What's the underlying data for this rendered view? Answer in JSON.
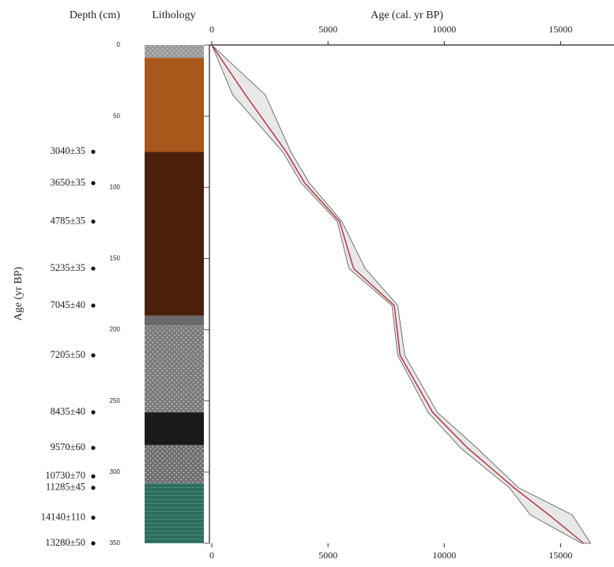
{
  "chart_data": {
    "type": "age-depth",
    "depth_label": "Depth (cm)",
    "lithology_label": "Lithology",
    "x_label": "Age (cal. yr BP)",
    "date_axis_label": "Age (yr BP)",
    "xlim": [
      0,
      17300
    ],
    "xticks": [
      0,
      5000,
      10000,
      15000
    ],
    "ylim": [
      0,
      350
    ],
    "yticks": [
      0,
      50,
      100,
      150,
      200,
      250,
      300,
      350
    ],
    "dates": {
      "depths": [
        75,
        97,
        124,
        157,
        183,
        218,
        258,
        283,
        303,
        311,
        332,
        350
      ],
      "labels": [
        "3040±35",
        "3650±35",
        "4785±35",
        "5235±35",
        "7045±40",
        "7205±50",
        "8435±40",
        "9570±60",
        "10730±70",
        "11285±45",
        "14140±110",
        "13280±50"
      ]
    },
    "lithology": [
      {
        "top": 0,
        "bottom": 9,
        "color": "#9a9a9a",
        "pattern": "dots"
      },
      {
        "top": 9,
        "bottom": 75,
        "color": "#a8581a",
        "pattern": "none"
      },
      {
        "top": 75,
        "bottom": 190,
        "color": "#4a2008",
        "pattern": "none"
      },
      {
        "top": 190,
        "bottom": 197,
        "color": "#6a6a6a",
        "pattern": "none"
      },
      {
        "top": 197,
        "bottom": 258,
        "color": "#7a7a7a",
        "pattern": "dots"
      },
      {
        "top": 258,
        "bottom": 281,
        "color": "#1a1a1a",
        "pattern": "none"
      },
      {
        "top": 281,
        "bottom": 308,
        "color": "#6e6e6e",
        "pattern": "dots"
      },
      {
        "top": 308,
        "bottom": 350,
        "color": "#2e6e5e",
        "pattern": "lines"
      }
    ],
    "model": {
      "line_color": "#b0303a",
      "band_color": "#d8d8d8",
      "edge_color": "#555555",
      "depths": [
        0,
        35,
        75,
        97,
        124,
        157,
        183,
        218,
        258,
        283,
        311,
        330,
        350
      ],
      "median": [
        0,
        1450,
        3200,
        4000,
        5500,
        6100,
        7850,
        8100,
        9500,
        11000,
        13000,
        14500,
        16000
      ],
      "min": [
        0,
        900,
        3050,
        3850,
        5400,
        5900,
        7750,
        8000,
        9300,
        10700,
        12800,
        13700,
        15900
      ],
      "max": [
        0,
        2300,
        3400,
        4200,
        5600,
        6600,
        8000,
        8300,
        9700,
        11400,
        13200,
        15500,
        16300
      ]
    }
  }
}
